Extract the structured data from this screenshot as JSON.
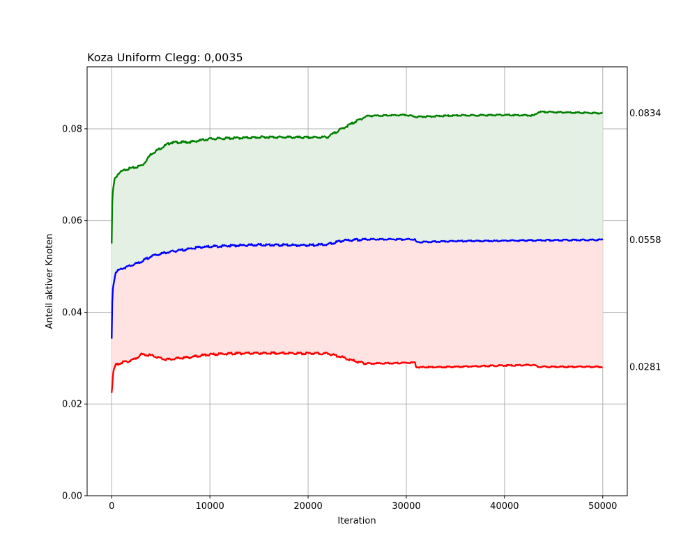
{
  "chart_data": {
    "type": "line",
    "title": "Koza Uniform Clegg: 0,0035",
    "xlabel": "Iteration",
    "ylabel": "Anteil aktiver Knoten",
    "xlim": [
      -2500,
      52500
    ],
    "ylim": [
      0.0,
      0.0935
    ],
    "xticks": [
      0,
      10000,
      20000,
      30000,
      40000,
      50000
    ],
    "xtick_labels": [
      "0",
      "10000",
      "20000",
      "30000",
      "40000",
      "50000"
    ],
    "yticks": [
      0.0,
      0.02,
      0.04,
      0.06,
      0.08
    ],
    "ytick_labels": [
      "0.00",
      "0.02",
      "0.04",
      "0.06",
      "0.08"
    ],
    "grid": true,
    "series": [
      {
        "color": "#008000",
        "fill": "#e3f0e3",
        "end_label": "0.0834",
        "points": [
          [
            0,
            0.055
          ],
          [
            30,
            0.062
          ],
          [
            100,
            0.066
          ],
          [
            300,
            0.069
          ],
          [
            700,
            0.0703
          ],
          [
            1500,
            0.0712
          ],
          [
            2500,
            0.0716
          ],
          [
            3200,
            0.0722
          ],
          [
            4000,
            0.0745
          ],
          [
            5000,
            0.0758
          ],
          [
            6000,
            0.077
          ],
          [
            8000,
            0.0771
          ],
          [
            10000,
            0.0778
          ],
          [
            13000,
            0.078
          ],
          [
            16000,
            0.0782
          ],
          [
            20000,
            0.0781
          ],
          [
            22000,
            0.0782
          ],
          [
            23000,
            0.0795
          ],
          [
            24500,
            0.0812
          ],
          [
            26000,
            0.0828
          ],
          [
            30000,
            0.083
          ],
          [
            31000,
            0.0826
          ],
          [
            35000,
            0.0829
          ],
          [
            40000,
            0.083
          ],
          [
            43000,
            0.0829
          ],
          [
            43500,
            0.0837
          ],
          [
            50000,
            0.0834
          ]
        ]
      },
      {
        "color": "#0000ff",
        "fill": "#ffe3e3",
        "end_label": "0.0558",
        "points": [
          [
            0,
            0.034
          ],
          [
            30,
            0.04
          ],
          [
            100,
            0.045
          ],
          [
            400,
            0.0488
          ],
          [
            1000,
            0.0495
          ],
          [
            2000,
            0.0502
          ],
          [
            3000,
            0.051
          ],
          [
            4000,
            0.0522
          ],
          [
            5500,
            0.053
          ],
          [
            7000,
            0.0535
          ],
          [
            9000,
            0.0542
          ],
          [
            12000,
            0.0545
          ],
          [
            15000,
            0.0547
          ],
          [
            20000,
            0.0546
          ],
          [
            22000,
            0.0548
          ],
          [
            23500,
            0.0556
          ],
          [
            26000,
            0.0559
          ],
          [
            30900,
            0.0559
          ],
          [
            31000,
            0.0553
          ],
          [
            35000,
            0.0555
          ],
          [
            40000,
            0.0556
          ],
          [
            45000,
            0.0557
          ],
          [
            50000,
            0.0558
          ]
        ]
      },
      {
        "color": "#ff0000",
        "end_label": "0.0281",
        "points": [
          [
            0,
            0.0225
          ],
          [
            60,
            0.024
          ],
          [
            150,
            0.027
          ],
          [
            400,
            0.0285
          ],
          [
            1000,
            0.029
          ],
          [
            2000,
            0.0295
          ],
          [
            2700,
            0.0302
          ],
          [
            3000,
            0.0308
          ],
          [
            4000,
            0.0306
          ],
          [
            5500,
            0.0297
          ],
          [
            8000,
            0.0302
          ],
          [
            9500,
            0.0307
          ],
          [
            12000,
            0.031
          ],
          [
            16000,
            0.0311
          ],
          [
            22000,
            0.031
          ],
          [
            23500,
            0.0302
          ],
          [
            25000,
            0.0292
          ],
          [
            26000,
            0.0288
          ],
          [
            30900,
            0.029
          ],
          [
            31000,
            0.028
          ],
          [
            35000,
            0.0281
          ],
          [
            40000,
            0.0284
          ],
          [
            43000,
            0.0285
          ],
          [
            43500,
            0.0281
          ],
          [
            50000,
            0.0281
          ]
        ]
      }
    ]
  }
}
